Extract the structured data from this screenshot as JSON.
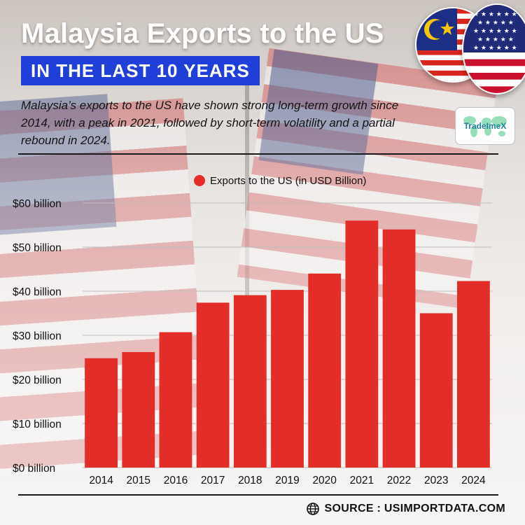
{
  "header": {
    "title": "Malaysia Exports to the US",
    "subtitle": "IN THE LAST 10 YEARS",
    "description": "Malaysia’s exports to the US have shown strong long-term growth since 2014, with a peak in 2021, followed by short-term volatility and a partial rebound in 2024."
  },
  "logo": {
    "text": "TradeImeX",
    "icon": "world-map-icon"
  },
  "flags": {
    "left": "malaysia-flag-icon",
    "right": "us-flag-icon"
  },
  "source": {
    "text": "SOURCE : USIMPORTDATA.COM",
    "icon": "globe-icon"
  },
  "colors": {
    "bar": "#e22d28",
    "accent_box": "#1f3fd8",
    "grid": "#bdbdbd"
  },
  "chart_data": {
    "type": "bar",
    "title": "",
    "xlabel": "",
    "ylabel": "",
    "categories": [
      "2014",
      "2015",
      "2016",
      "2017",
      "2018",
      "2019",
      "2020",
      "2021",
      "2022",
      "2023",
      "2024"
    ],
    "series": [
      {
        "name": "Exports to the US (in USD Billion)",
        "values": [
          24.8,
          26.2,
          30.7,
          37.4,
          39.1,
          40.3,
          44.0,
          56.0,
          54.0,
          35.0,
          42.3
        ]
      }
    ],
    "ylim": [
      0,
      60
    ],
    "yticks": [
      0,
      10,
      20,
      30,
      40,
      50,
      60
    ],
    "ytick_labels": [
      "$0 billion",
      "$10 billion",
      "$20 billion",
      "$30 billion",
      "$40 billion",
      "$50 billion",
      "$60 billion"
    ],
    "grid": true,
    "legend_position": "top-center"
  }
}
